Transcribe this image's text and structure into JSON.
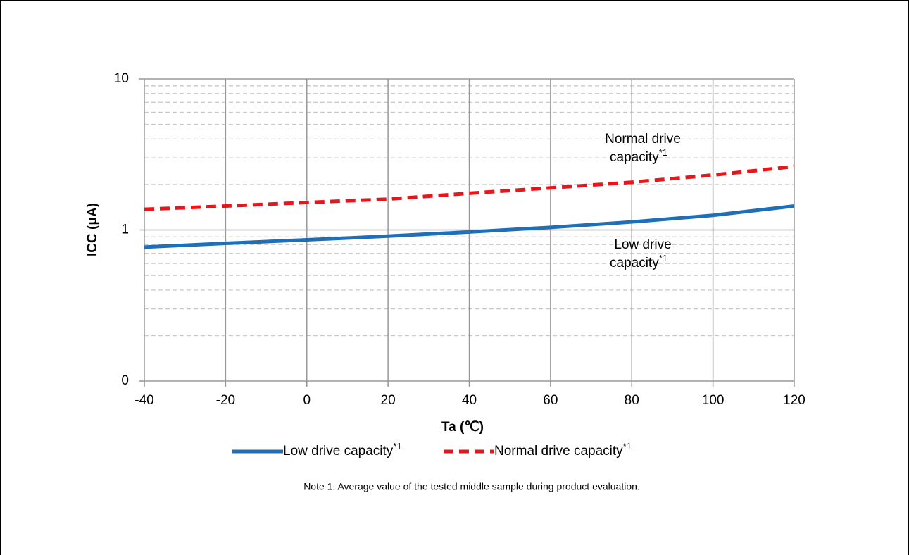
{
  "chart_data": {
    "type": "line",
    "x_label": "Ta (℃)",
    "y_label": "ICC (μA)",
    "x": [
      -40,
      -20,
      0,
      20,
      40,
      60,
      80,
      100,
      120
    ],
    "series": [
      {
        "name": "Low drive capacity",
        "color": "#1f6fb8",
        "dash": "solid",
        "values": [
          0.77,
          0.815,
          0.86,
          0.91,
          0.97,
          1.04,
          1.13,
          1.25,
          1.44
        ]
      },
      {
        "name": "Normal drive capacity",
        "color": "#e8161b",
        "dash": "dashed",
        "values": [
          1.37,
          1.44,
          1.52,
          1.6,
          1.75,
          1.9,
          2.07,
          2.31,
          2.63
        ]
      }
    ],
    "footnote_marker": "*1",
    "annotations": [
      {
        "lines": [
          "Normal drive",
          "capacity"
        ],
        "series": 1
      },
      {
        "lines": [
          "Low drive",
          "capacity"
        ],
        "series": 0
      }
    ],
    "note": "Note 1. Average value of the tested middle sample during product evaluation.",
    "xlim": [
      -40,
      120
    ],
    "xticks": [
      -40,
      -20,
      0,
      20,
      40,
      60,
      80,
      100,
      120
    ],
    "ylim": [
      0.1,
      10
    ],
    "yticks": [
      {
        "value": 0.1,
        "label": "0"
      },
      1,
      10
    ],
    "log_y": true,
    "grid": true,
    "minor_grid": true,
    "legend": "bottom"
  }
}
